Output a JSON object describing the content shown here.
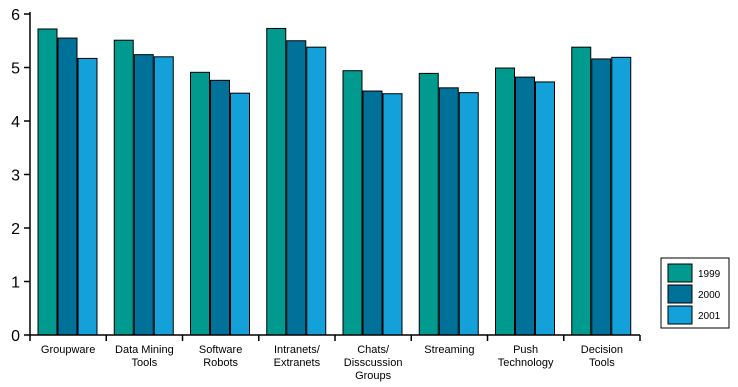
{
  "chart_data": {
    "type": "bar",
    "categories": [
      [
        "Groupware"
      ],
      [
        "Data Mining",
        "Tools"
      ],
      [
        "Software",
        "Robots"
      ],
      [
        "Intranets/",
        "Extranets"
      ],
      [
        "Chats/",
        "Disscussion",
        "Groups"
      ],
      [
        "Streaming"
      ],
      [
        "Push",
        "Technology"
      ],
      [
        "Decision",
        "Tools"
      ]
    ],
    "series": [
      {
        "name": "1999",
        "color": "#009a8e",
        "values": [
          5.72,
          5.51,
          4.91,
          5.73,
          4.94,
          4.89,
          4.99,
          5.38
        ]
      },
      {
        "name": "2000",
        "color": "#00729a",
        "values": [
          5.55,
          5.24,
          4.76,
          5.5,
          4.56,
          4.62,
          4.82,
          5.16
        ]
      },
      {
        "name": "2001",
        "color": "#14a0d8",
        "values": [
          5.17,
          5.2,
          4.52,
          5.38,
          4.51,
          4.53,
          4.73,
          5.19
        ]
      }
    ],
    "yticks": [
      "0",
      "1",
      "2",
      "3",
      "4",
      "5",
      "6"
    ],
    "ylim": [
      0,
      6
    ],
    "grid": false,
    "legend": "bottom-right",
    "title": "",
    "xlabel": "",
    "ylabel": ""
  }
}
